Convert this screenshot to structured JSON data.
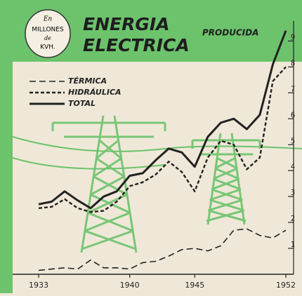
{
  "chart_data": {
    "type": "line",
    "title": "ENERGIA ELECTRICA",
    "subtitle": "PRODUCIDA",
    "unit_label": [
      "En",
      "MILLONES",
      "de",
      "KVH."
    ],
    "x": [
      1933,
      1934,
      1935,
      1936,
      1937,
      1938,
      1939,
      1940,
      1941,
      1942,
      1943,
      1944,
      1945,
      1946,
      1947,
      1948,
      1949,
      1950,
      1951,
      1952
    ],
    "series": [
      {
        "name": "TÉRMICA",
        "color": "#222222",
        "linestyle": "long-dash",
        "values": [
          0.15,
          0.2,
          0.25,
          0.2,
          0.55,
          0.25,
          0.25,
          0.2,
          0.45,
          0.5,
          0.7,
          0.95,
          1.0,
          0.9,
          1.1,
          1.7,
          1.75,
          1.5,
          1.4,
          1.7
        ]
      },
      {
        "name": "HIDRÁULICA",
        "color": "#222222",
        "linestyle": "short-dash",
        "values": [
          2.55,
          2.6,
          2.9,
          2.55,
          2.4,
          2.45,
          2.8,
          3.4,
          3.55,
          3.85,
          4.35,
          3.95,
          3.2,
          4.5,
          5.15,
          5.0,
          4.05,
          4.5,
          7.45,
          8.0
        ]
      },
      {
        "name": "TOTAL",
        "color": "#222222",
        "linestyle": "solid",
        "values": [
          2.7,
          2.8,
          3.2,
          2.85,
          2.55,
          3.0,
          3.2,
          3.8,
          3.9,
          4.4,
          4.85,
          4.7,
          4.15,
          5.3,
          5.85,
          6.0,
          5.6,
          6.15,
          8.1,
          9.4
        ]
      }
    ],
    "xlim": [
      1933,
      1952
    ],
    "xticks": [
      1933,
      1940,
      1945,
      1952
    ],
    "ylim": [
      0,
      9.5
    ],
    "yticks": [
      1,
      2,
      3,
      4,
      5,
      6,
      7,
      8,
      9
    ],
    "accent_color": "#6cc36c"
  }
}
